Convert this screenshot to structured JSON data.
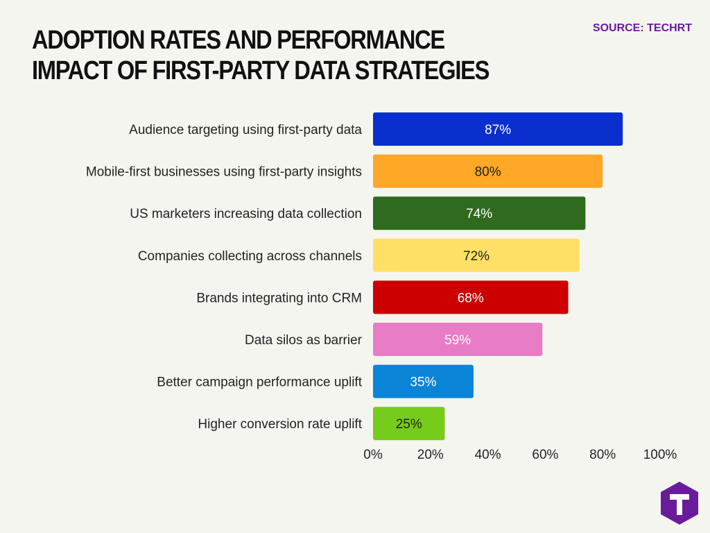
{
  "header": {
    "title": "ADOPTION RATES AND PERFORMANCE IMPACT OF FIRST-PARTY DATA STRATEGIES",
    "source": "SOURCE: TECHRT"
  },
  "logo": {
    "icon": "techrt-logo-icon",
    "color": "#6a1b9a"
  },
  "chart_data": {
    "type": "bar",
    "orientation": "horizontal",
    "title": "ADOPTION RATES AND PERFORMANCE IMPACT OF FIRST-PARTY DATA STRATEGIES",
    "xlabel": "",
    "ylabel": "",
    "xlim": [
      0,
      100
    ],
    "grid": false,
    "legend": "none",
    "categories": [
      "Audience targeting using first-party data",
      "Mobile-first businesses using first-party insights",
      "US marketers increasing data collection",
      "Companies collecting across channels",
      "Brands integrating into CRM",
      "Data silos as barrier",
      "Better campaign performance uplift",
      "Higher conversion rate uplift"
    ],
    "values": [
      87,
      80,
      74,
      72,
      68,
      59,
      35,
      25
    ],
    "value_labels": [
      "87%",
      "80%",
      "74%",
      "72%",
      "68%",
      "59%",
      "35%",
      "25%"
    ],
    "colors": [
      "#0a2fcf",
      "#ffa726",
      "#2e6b1f",
      "#ffe066",
      "#cc0000",
      "#e87cc7",
      "#0a84d6",
      "#76cc1b"
    ],
    "label_colors": [
      "#ffffff",
      "#222222",
      "#ffffff",
      "#222222",
      "#ffffff",
      "#ffffff",
      "#ffffff",
      "#222222"
    ],
    "ticks": [
      0,
      20,
      40,
      60,
      80,
      100
    ],
    "tick_labels": [
      "0%",
      "20%",
      "40%",
      "60%",
      "80%",
      "100%"
    ]
  }
}
